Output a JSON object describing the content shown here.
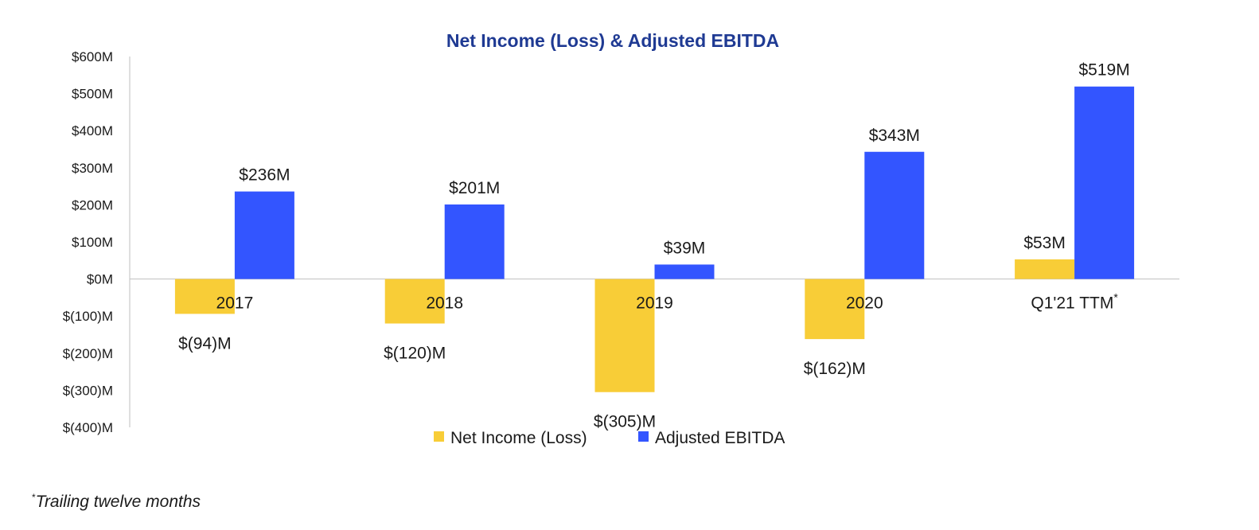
{
  "chart_data": {
    "type": "bar",
    "title": "Net Income (Loss) & Adjusted EBITDA",
    "categories": [
      "2017",
      "2018",
      "2019",
      "2020",
      "Q1'21 TTM"
    ],
    "category_superscripts": [
      "",
      "",
      "",
      "",
      "*"
    ],
    "series": [
      {
        "name": "Net Income (Loss)",
        "color": "#F8CD37",
        "values": [
          -94,
          -120,
          -305,
          -162,
          53
        ],
        "labels": [
          "$(94)M",
          "$(120)M",
          "$(305)M",
          "$(162)M",
          "$53M"
        ]
      },
      {
        "name": "Adjusted EBITDA",
        "color": "#3355FF",
        "values": [
          236,
          201,
          39,
          343,
          519
        ],
        "labels": [
          "$236M",
          "$201M",
          "$39M",
          "$343M",
          "$519M"
        ]
      }
    ],
    "ylim": [
      -400,
      600
    ],
    "yticks": [
      600,
      500,
      400,
      300,
      200,
      100,
      0,
      -100,
      -200,
      -300,
      -400
    ],
    "ytick_labels": [
      "$600M",
      "$500M",
      "$400M",
      "$300M",
      "$200M",
      "$100M",
      "$0M",
      "$(100)M",
      "$(200)M",
      "$(300)M",
      "$(400)M"
    ],
    "xlabel": "",
    "ylabel": "",
    "grid": false,
    "legend_position": "bottom",
    "title_color": "#1F3A93"
  },
  "footnote": {
    "marker": "*",
    "text": "Trailing twelve months"
  }
}
